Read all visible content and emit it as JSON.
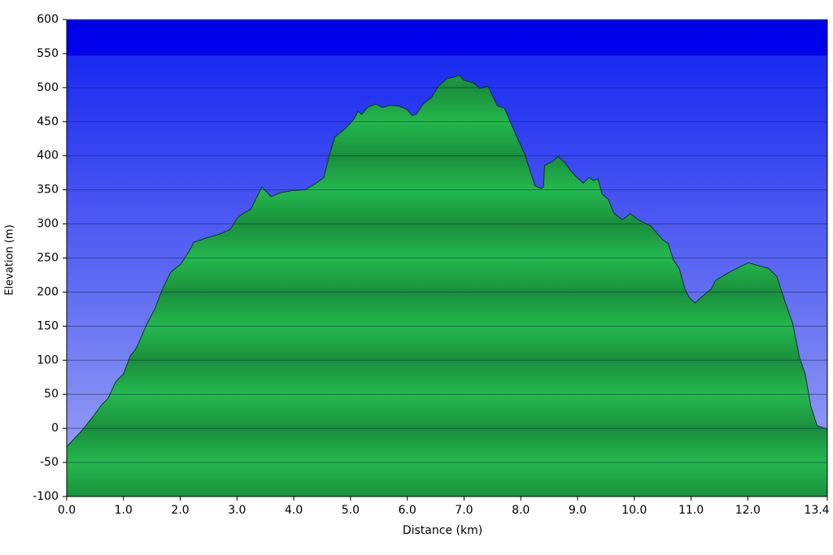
{
  "chart_data": {
    "type": "area",
    "xlabel": "Distance   (km)",
    "ylabel": "Elevation (m)",
    "x": [
      0,
      0.26,
      0.47,
      0.62,
      0.73,
      0.86,
      1.0,
      1.12,
      1.23,
      1.4,
      1.55,
      1.69,
      1.83,
      2.01,
      2.15,
      2.24,
      2.48,
      2.69,
      2.88,
      3.01,
      3.12,
      3.24,
      3.34,
      3.44,
      3.6,
      3.77,
      3.98,
      4.2,
      4.38,
      4.53,
      4.63,
      4.73,
      4.91,
      5.06,
      5.13,
      5.2,
      5.3,
      5.44,
      5.56,
      5.7,
      5.85,
      5.99,
      6.09,
      6.16,
      6.28,
      6.42,
      6.56,
      6.7,
      6.85,
      6.92,
      6.99,
      7.16,
      7.28,
      7.42,
      7.59,
      7.71,
      7.85,
      8.07,
      8.14,
      8.25,
      8.35,
      8.4,
      8.42,
      8.57,
      8.65,
      8.78,
      8.88,
      8.99,
      9.1,
      9.2,
      9.28,
      9.36,
      9.43,
      9.54,
      9.64,
      9.79,
      9.93,
      10.07,
      10.29,
      10.5,
      10.6,
      10.69,
      10.79,
      10.89,
      10.96,
      11.07,
      11.19,
      11.36,
      11.43,
      11.65,
      11.86,
      12.01,
      12.22,
      12.36,
      12.51,
      12.65,
      12.79,
      12.91,
      13.01,
      13.11,
      13.22,
      13.4
    ],
    "values": [
      -27,
      -4,
      18,
      35,
      44,
      68,
      80,
      106,
      118,
      151,
      175,
      205,
      229,
      241,
      259,
      273,
      280,
      285,
      292,
      309,
      316,
      321,
      338,
      354,
      340,
      346,
      349,
      350,
      359,
      368,
      402,
      428,
      440,
      454,
      465,
      461,
      471,
      476,
      471,
      474,
      473,
      468,
      459,
      461,
      476,
      485,
      503,
      513,
      516,
      518,
      511,
      507,
      499,
      502,
      473,
      470,
      443,
      402,
      384,
      356,
      352,
      354,
      386,
      392,
      399,
      390,
      378,
      368,
      360,
      368,
      364,
      366,
      344,
      336,
      316,
      306,
      315,
      306,
      297,
      277,
      271,
      247,
      235,
      205,
      193,
      184,
      193,
      205,
      217,
      228,
      237,
      243,
      238,
      235,
      223,
      187,
      154,
      104,
      80,
      32,
      4,
      -1
    ],
    "color": "#1fae48",
    "xlim": [
      0,
      13.4
    ],
    "xticks": [
      {
        "value": 0,
        "label": "0.0"
      },
      {
        "value": 1,
        "label": "1.0"
      },
      {
        "value": 2,
        "label": "2.0"
      },
      {
        "value": 3,
        "label": "3.0"
      },
      {
        "value": 4,
        "label": "4.0"
      },
      {
        "value": 5,
        "label": "5.0"
      },
      {
        "value": 6,
        "label": "6.0"
      },
      {
        "value": 7,
        "label": "7.0"
      },
      {
        "value": 8,
        "label": "8.0"
      },
      {
        "value": 9,
        "label": "9.0"
      },
      {
        "value": 10,
        "label": "10.0"
      },
      {
        "value": 11,
        "label": "11.0"
      },
      {
        "value": 12,
        "label": "12.0"
      },
      13.4
    ],
    "ylim": [
      -100,
      600
    ],
    "yticks": [
      -100,
      -50,
      0,
      50,
      100,
      150,
      200,
      250,
      300,
      350,
      400,
      450,
      500,
      550,
      600
    ],
    "grid": true
  }
}
